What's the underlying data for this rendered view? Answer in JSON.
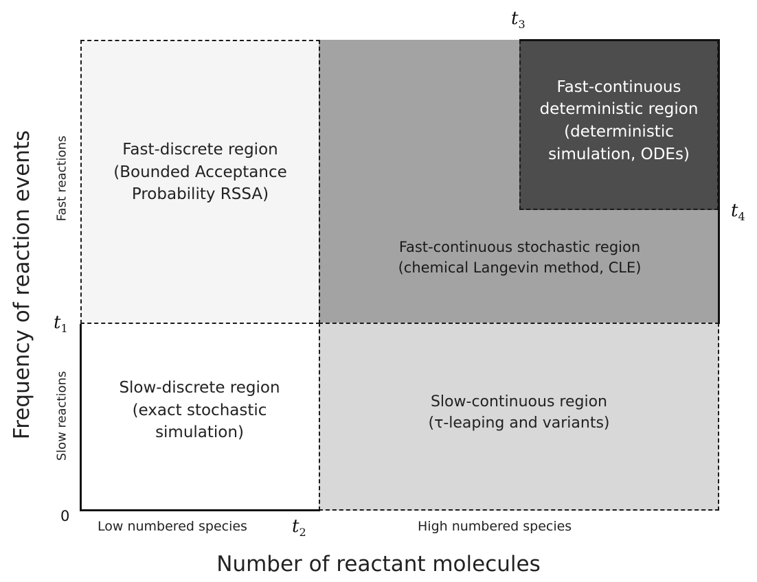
{
  "axes": {
    "x_title": "Number of reactant molecules",
    "y_title": "Frequency of reaction events",
    "origin": "0",
    "x_categories": [
      "Low numbered species",
      "High numbered species"
    ],
    "y_categories": [
      "Fast reactions",
      "Slow reactions"
    ]
  },
  "thresholds": {
    "t1": "t",
    "t1_sub": "1",
    "t2": "t",
    "t2_sub": "2",
    "t3": "t",
    "t3_sub": "3",
    "t4": "t",
    "t4_sub": "4"
  },
  "regions": {
    "fast_discrete": "Fast-discrete region\n(Bounded Acceptance\nProbability RSSA)",
    "fast_continuous_stochastic": "Fast-continuous stochastic region\n(chemical Langevin method, CLE)",
    "fast_continuous_deterministic": "Fast-continuous\ndeterministic region\n(deterministic\nsimulation, ODEs)",
    "slow_discrete": "Slow-discrete region\n(exact stochastic\nsimulation)",
    "slow_continuous": "Slow-continuous region\n(τ-leaping and variants)"
  },
  "colors": {
    "fast_discrete": "#f5f5f5",
    "fast_continuous_stochastic": "#a3a3a3",
    "fast_continuous_deterministic": "#4d4d4d",
    "slow_discrete": "#ffffff",
    "slow_continuous": "#d8d8d8"
  }
}
